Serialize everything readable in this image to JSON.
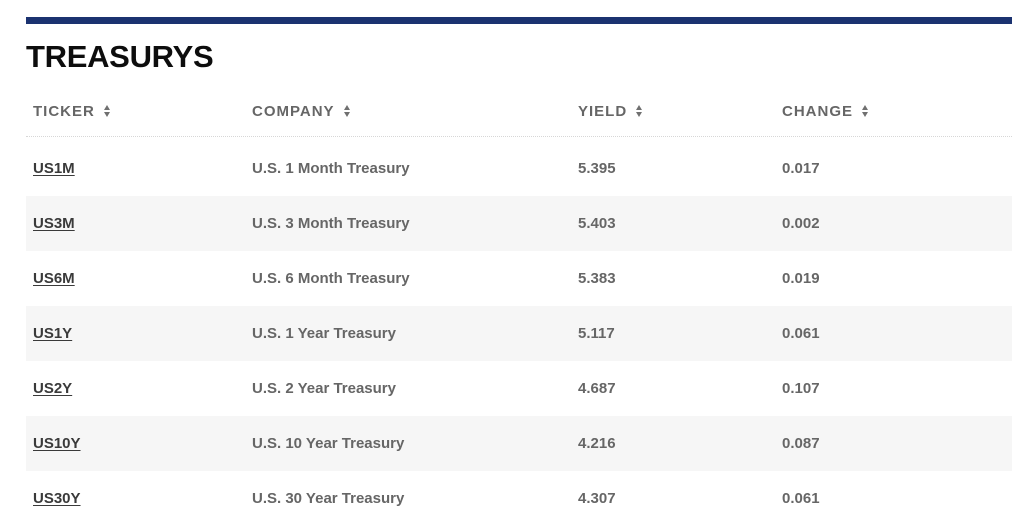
{
  "section": {
    "title": "TREASURYS"
  },
  "table": {
    "headers": {
      "ticker": "TICKER",
      "company": "COMPANY",
      "yield": "YIELD",
      "change": "CHANGE"
    },
    "rows": [
      {
        "ticker": "US1M",
        "company": "U.S. 1 Month Treasury",
        "yield": "5.395",
        "change": "0.017"
      },
      {
        "ticker": "US3M",
        "company": "U.S. 3 Month Treasury",
        "yield": "5.403",
        "change": "0.002"
      },
      {
        "ticker": "US6M",
        "company": "U.S. 6 Month Treasury",
        "yield": "5.383",
        "change": "0.019"
      },
      {
        "ticker": "US1Y",
        "company": "U.S. 1 Year Treasury",
        "yield": "5.117",
        "change": "0.061"
      },
      {
        "ticker": "US2Y",
        "company": "U.S. 2 Year Treasury",
        "yield": "4.687",
        "change": "0.107"
      },
      {
        "ticker": "US10Y",
        "company": "U.S. 10 Year Treasury",
        "yield": "4.216",
        "change": "0.087"
      },
      {
        "ticker": "US30Y",
        "company": "U.S. 30 Year Treasury",
        "yield": "4.307",
        "change": "0.061"
      }
    ]
  },
  "colors": {
    "accent_rule": "#1b3270",
    "alt_row_bg": "#f6f6f6"
  },
  "icons": {
    "sort": "sort-icon"
  }
}
